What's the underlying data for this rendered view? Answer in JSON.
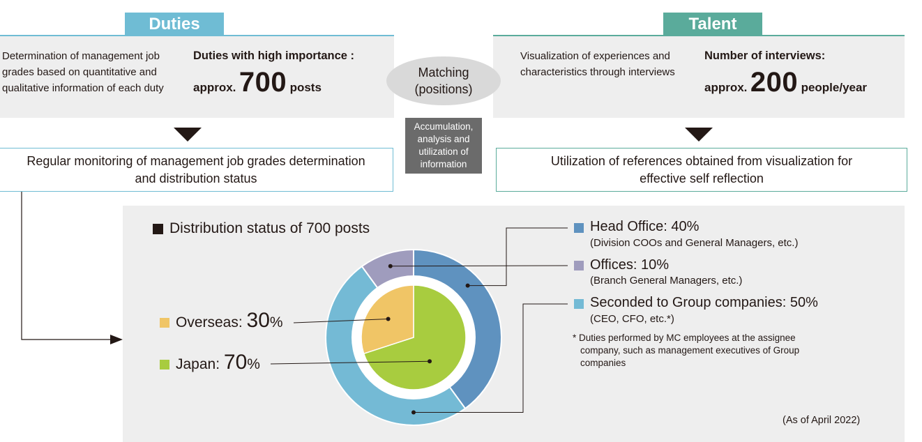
{
  "duties": {
    "tab": "Duties",
    "description_lines": [
      "Determination of management job",
      "grades based on quantitative and",
      "qualitative information of each duty"
    ],
    "stat_heading": "Duties with high importance :",
    "stat_prefix": "approx.",
    "stat_value": "700",
    "stat_unit": "posts",
    "box_lines": [
      "Regular monitoring of management job grades determination",
      "and distribution status"
    ]
  },
  "talent": {
    "tab": "Talent",
    "description_lines": [
      "Visualization of experiences and",
      "characteristics through interviews"
    ],
    "stat_heading": "Number of interviews:",
    "stat_prefix": "approx.",
    "stat_value": "200",
    "stat_unit": "people/year",
    "box_lines": [
      "Utilization of references obtained from visualization for",
      "effective self reflection"
    ]
  },
  "center": {
    "matching_lines": [
      "Matching",
      "(positions)"
    ],
    "accumulation_lines": [
      "Accumulation,",
      "analysis and",
      "utilization of",
      "information"
    ]
  },
  "distribution": {
    "title": "Distribution status of 700 posts",
    "as_of": "(As of April 2022)",
    "footnote_lines": [
      "* Duties performed by MC employees at the assignee",
      "company, such as management executives of Group",
      "companies"
    ]
  },
  "chart_data": {
    "type": "pie",
    "title": "Distribution status of 700 posts",
    "inner": [
      {
        "name": "Japan",
        "label": "Japan: ",
        "value": 70,
        "pct_suffix": "%",
        "color": "#a8cc3f"
      },
      {
        "name": "Overseas",
        "label": "Overseas: ",
        "value": 30,
        "pct_suffix": "%",
        "color": "#f0c566"
      }
    ],
    "outer": [
      {
        "name": "Head Office",
        "label": "Head Office: 40%",
        "value": 40,
        "sub": "(Division COOs and General Managers, etc.)",
        "color": "#5f92bf"
      },
      {
        "name": "Seconded to Group companies",
        "label": "Seconded to Group companies: 50%",
        "value": 50,
        "sub": "(CEO, CFO, etc.*)",
        "color": "#74bad5"
      },
      {
        "name": "Offices",
        "label": "Offices: 10%",
        "value": 10,
        "sub": "(Branch General Managers, etc.)",
        "color": "#9f9cbd"
      }
    ]
  }
}
